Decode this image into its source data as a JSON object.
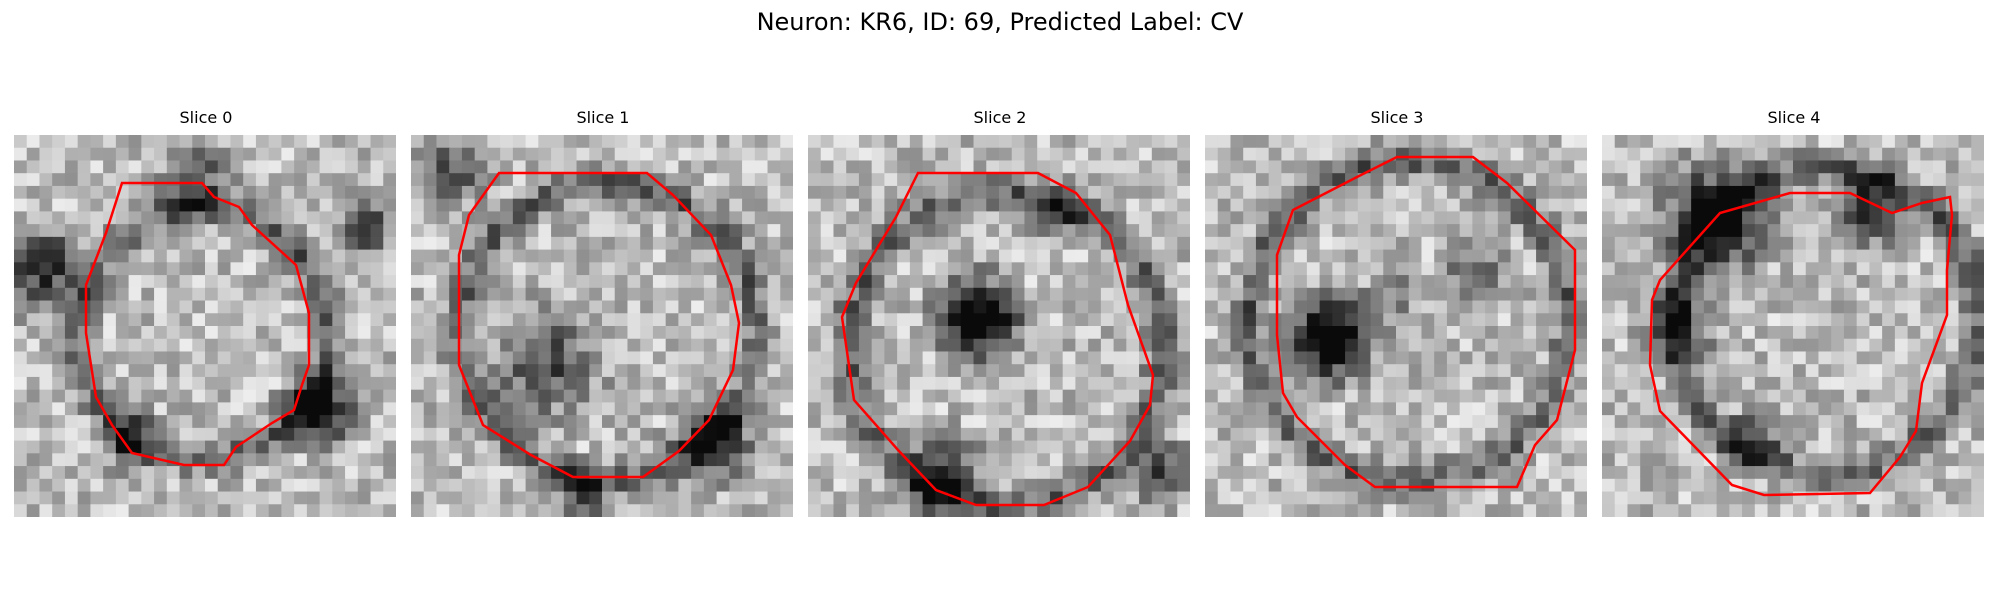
{
  "figure": {
    "title": "Neuron: KR6, ID: 69, Predicted Label: CV"
  },
  "panels": [
    {
      "title": "Slice 0",
      "image_description": "grayscale EM patch of a neuron cross-section with red segmentation contour",
      "contour_color": "#ff0000"
    },
    {
      "title": "Slice 1",
      "image_description": "grayscale EM patch of a neuron cross-section with red segmentation contour",
      "contour_color": "#ff0000"
    },
    {
      "title": "Slice 2",
      "image_description": "grayscale EM patch of a neuron cross-section with red segmentation contour",
      "contour_color": "#ff0000"
    },
    {
      "title": "Slice 3",
      "image_description": "grayscale EM patch of a neuron cross-section with red segmentation contour",
      "contour_color": "#ff0000"
    },
    {
      "title": "Slice 4",
      "image_description": "grayscale EM patch of a neuron cross-section with red segmentation contour",
      "contour_color": "#ff0000"
    }
  ],
  "colors": {
    "background": "#ffffff",
    "contour": "#ff0000"
  }
}
